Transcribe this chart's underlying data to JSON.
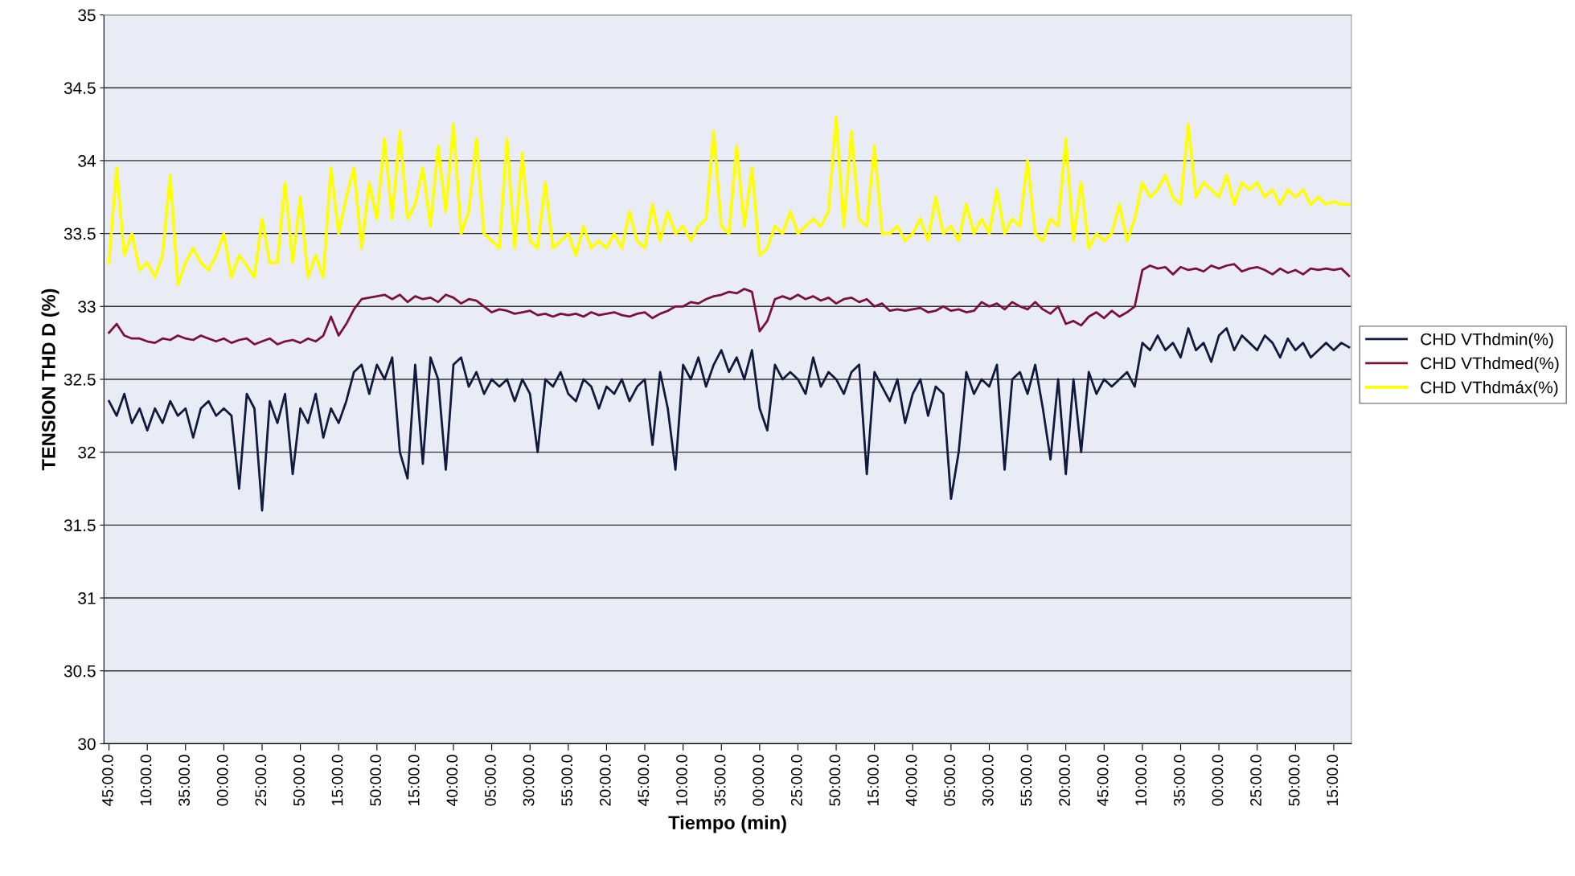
{
  "chart_data": {
    "type": "line",
    "xlabel": "Tiempo (min)",
    "ylabel": "TENSION THD D (%)",
    "categories": [
      "45:00.0",
      null,
      null,
      null,
      null,
      "10:00.0",
      null,
      null,
      null,
      null,
      "35:00.0",
      null,
      null,
      null,
      null,
      "00:00.0",
      null,
      null,
      null,
      null,
      "25:00.0",
      null,
      null,
      null,
      null,
      "50:00.0",
      null,
      null,
      null,
      null,
      "15:00.0",
      null,
      null,
      null,
      null,
      "50:00.0",
      null,
      null,
      null,
      null,
      "15:00.0",
      null,
      null,
      null,
      null,
      "40:00.0",
      null,
      null,
      null,
      null,
      "05:00.0",
      null,
      null,
      null,
      null,
      "30:00.0",
      null,
      null,
      null,
      null,
      "55:00.0",
      null,
      null,
      null,
      null,
      "20:00.0",
      null,
      null,
      null,
      null,
      "45:00.0",
      null,
      null,
      null,
      null,
      "10:00.0",
      null,
      null,
      null,
      null,
      "35:00.0",
      null,
      null,
      null,
      null,
      "00:00.0",
      null,
      null,
      null,
      null,
      "25:00.0",
      null,
      null,
      null,
      null,
      "50:00.0",
      null,
      null,
      null,
      null,
      "15:00.0",
      null,
      null,
      null,
      null,
      "40:00.0",
      null,
      null,
      null,
      null,
      "05:00.0",
      null,
      null,
      null,
      null,
      "30:00.0",
      null,
      null,
      null,
      null,
      "55:00.0",
      null,
      null,
      null,
      null,
      "20:00.0",
      null,
      null,
      null,
      null,
      "45:00.0",
      null,
      null,
      null,
      null,
      "10:00.0",
      null,
      null,
      null,
      null,
      "35:00.0",
      null,
      null,
      null,
      null,
      "00:00.0",
      null,
      null,
      null,
      null,
      "25:00.0",
      null,
      null,
      null,
      null,
      "50:00.0",
      null,
      null,
      null,
      null,
      "15:00.0",
      null,
      null
    ],
    "series": [
      {
        "name": "CHD VThdmin(%)",
        "color": "#0f1a3c",
        "values": [
          32.35,
          32.25,
          32.4,
          32.2,
          32.3,
          32.15,
          32.3,
          32.2,
          32.35,
          32.25,
          32.3,
          32.1,
          32.3,
          32.35,
          32.25,
          32.3,
          32.25,
          31.75,
          32.4,
          32.3,
          31.6,
          32.35,
          32.2,
          32.4,
          31.85,
          32.3,
          32.2,
          32.4,
          32.1,
          32.3,
          32.2,
          32.35,
          32.55,
          32.6,
          32.4,
          32.6,
          32.5,
          32.65,
          32.0,
          31.82,
          32.6,
          31.92,
          32.65,
          32.5,
          31.88,
          32.6,
          32.65,
          32.45,
          32.55,
          32.4,
          32.5,
          32.45,
          32.5,
          32.35,
          32.5,
          32.4,
          32.0,
          32.5,
          32.45,
          32.55,
          32.4,
          32.35,
          32.5,
          32.45,
          32.3,
          32.45,
          32.4,
          32.5,
          32.35,
          32.45,
          32.5,
          32.05,
          32.55,
          32.3,
          31.88,
          32.6,
          32.5,
          32.65,
          32.45,
          32.6,
          32.7,
          32.55,
          32.65,
          32.5,
          32.7,
          32.3,
          32.15,
          32.6,
          32.5,
          32.55,
          32.5,
          32.4,
          32.65,
          32.45,
          32.55,
          32.5,
          32.4,
          32.55,
          32.6,
          31.85,
          32.55,
          32.45,
          32.35,
          32.5,
          32.2,
          32.4,
          32.5,
          32.25,
          32.45,
          32.4,
          31.68,
          32.0,
          32.55,
          32.4,
          32.5,
          32.45,
          32.6,
          31.88,
          32.5,
          32.55,
          32.4,
          32.6,
          32.3,
          31.95,
          32.5,
          31.85,
          32.5,
          32.0,
          32.55,
          32.4,
          32.5,
          32.45,
          32.5,
          32.55,
          32.45,
          32.75,
          32.7,
          32.8,
          32.7,
          32.75,
          32.65,
          32.85,
          32.7,
          32.75,
          32.62,
          32.8,
          32.85,
          32.7,
          32.8,
          32.75,
          32.7,
          32.8,
          32.75,
          32.65,
          32.78,
          32.7,
          32.75,
          32.65,
          32.7,
          32.75,
          32.7,
          32.75,
          32.72
        ]
      },
      {
        "name": "CHD VThdmed(%)",
        "color": "#7a1040",
        "values": [
          32.82,
          32.88,
          32.8,
          32.78,
          32.78,
          32.76,
          32.75,
          32.78,
          32.77,
          32.8,
          32.78,
          32.77,
          32.8,
          32.78,
          32.76,
          32.78,
          32.75,
          32.77,
          32.78,
          32.74,
          32.76,
          32.78,
          32.74,
          32.76,
          32.77,
          32.75,
          32.78,
          32.76,
          32.8,
          32.93,
          32.8,
          32.88,
          32.98,
          33.05,
          33.06,
          33.07,
          33.08,
          33.05,
          33.08,
          33.03,
          33.07,
          33.05,
          33.06,
          33.03,
          33.08,
          33.06,
          33.02,
          33.05,
          33.04,
          33.0,
          32.96,
          32.98,
          32.97,
          32.95,
          32.96,
          32.97,
          32.94,
          32.95,
          32.93,
          32.95,
          32.94,
          32.95,
          32.93,
          32.96,
          32.94,
          32.95,
          32.96,
          32.94,
          32.93,
          32.95,
          32.96,
          32.92,
          32.95,
          32.97,
          33.0,
          33.0,
          33.03,
          33.02,
          33.05,
          33.07,
          33.08,
          33.1,
          33.09,
          33.12,
          33.1,
          32.83,
          32.9,
          33.05,
          33.07,
          33.05,
          33.08,
          33.05,
          33.07,
          33.04,
          33.06,
          33.02,
          33.05,
          33.06,
          33.03,
          33.05,
          33.0,
          33.02,
          32.97,
          32.98,
          32.97,
          32.98,
          32.99,
          32.96,
          32.97,
          33.0,
          32.97,
          32.98,
          32.96,
          32.97,
          33.03,
          33.0,
          33.02,
          32.98,
          33.03,
          33.0,
          32.98,
          33.03,
          32.98,
          32.95,
          33.0,
          32.88,
          32.9,
          32.87,
          32.93,
          32.96,
          32.92,
          32.97,
          32.93,
          32.96,
          33.0,
          33.25,
          33.28,
          33.26,
          33.27,
          33.22,
          33.27,
          33.25,
          33.26,
          33.24,
          33.28,
          33.26,
          33.28,
          33.29,
          33.24,
          33.26,
          33.27,
          33.25,
          33.22,
          33.26,
          33.23,
          33.25,
          33.22,
          33.26,
          33.25,
          33.26,
          33.25,
          33.26,
          33.21
        ]
      },
      {
        "name": "CHD VThdmáx(%)",
        "color": "#ffff00",
        "values": [
          33.3,
          33.95,
          33.35,
          33.5,
          33.25,
          33.3,
          33.2,
          33.35,
          33.9,
          33.15,
          33.3,
          33.4,
          33.3,
          33.25,
          33.35,
          33.5,
          33.2,
          33.35,
          33.28,
          33.2,
          33.6,
          33.3,
          33.3,
          33.85,
          33.3,
          33.75,
          33.2,
          33.35,
          33.2,
          33.95,
          33.5,
          33.75,
          33.95,
          33.4,
          33.85,
          33.6,
          34.15,
          33.6,
          34.2,
          33.6,
          33.7,
          33.95,
          33.55,
          34.1,
          33.65,
          34.25,
          33.5,
          33.65,
          34.15,
          33.5,
          33.45,
          33.4,
          34.15,
          33.4,
          34.05,
          33.45,
          33.4,
          33.85,
          33.4,
          33.45,
          33.5,
          33.35,
          33.55,
          33.4,
          33.45,
          33.4,
          33.5,
          33.4,
          33.65,
          33.45,
          33.4,
          33.7,
          33.45,
          33.65,
          33.5,
          33.55,
          33.45,
          33.55,
          33.6,
          34.2,
          33.55,
          33.5,
          34.1,
          33.55,
          33.95,
          33.35,
          33.4,
          33.55,
          33.5,
          33.65,
          33.5,
          33.55,
          33.6,
          33.55,
          33.65,
          34.3,
          33.55,
          34.2,
          33.6,
          33.55,
          34.1,
          33.5,
          33.5,
          33.55,
          33.45,
          33.5,
          33.6,
          33.45,
          33.75,
          33.5,
          33.55,
          33.45,
          33.7,
          33.5,
          33.6,
          33.5,
          33.8,
          33.5,
          33.6,
          33.55,
          34.0,
          33.5,
          33.45,
          33.6,
          33.55,
          34.15,
          33.45,
          33.85,
          33.4,
          33.5,
          33.45,
          33.5,
          33.7,
          33.45,
          33.6,
          33.85,
          33.75,
          33.8,
          33.9,
          33.75,
          33.7,
          34.25,
          33.75,
          33.85,
          33.8,
          33.75,
          33.9,
          33.7,
          33.85,
          33.8,
          33.85,
          33.75,
          33.8,
          33.7,
          33.8,
          33.75,
          33.8,
          33.7,
          33.75,
          33.7,
          33.72,
          33.7,
          33.7
        ]
      }
    ],
    "ylim": [
      30,
      35
    ],
    "yticks": [
      30,
      30.5,
      31,
      31.5,
      32,
      32.5,
      33,
      33.5,
      34,
      34.5,
      35
    ],
    "grid": "y",
    "legend": "right",
    "marker": "none",
    "line_style": "solid"
  }
}
